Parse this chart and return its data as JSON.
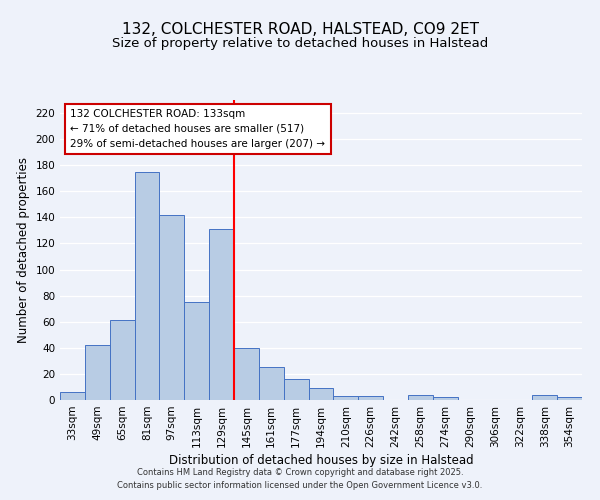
{
  "title": "132, COLCHESTER ROAD, HALSTEAD, CO9 2ET",
  "subtitle": "Size of property relative to detached houses in Halstead",
  "xlabel": "Distribution of detached houses by size in Halstead",
  "ylabel": "Number of detached properties",
  "bar_labels": [
    "33sqm",
    "49sqm",
    "65sqm",
    "81sqm",
    "97sqm",
    "113sqm",
    "129sqm",
    "145sqm",
    "161sqm",
    "177sqm",
    "194sqm",
    "210sqm",
    "226sqm",
    "242sqm",
    "258sqm",
    "274sqm",
    "290sqm",
    "306sqm",
    "322sqm",
    "338sqm",
    "354sqm"
  ],
  "bar_heights": [
    6,
    42,
    61,
    175,
    142,
    75,
    131,
    40,
    25,
    16,
    9,
    3,
    3,
    0,
    4,
    2,
    0,
    0,
    0,
    4,
    2
  ],
  "bar_color": "#b8cce4",
  "bar_edgecolor": "#4472c4",
  "vline_color": "#ff0000",
  "annotation_title": "132 COLCHESTER ROAD: 133sqm",
  "annotation_line1": "← 71% of detached houses are smaller (517)",
  "annotation_line2": "29% of semi-detached houses are larger (207) →",
  "annotation_box_color": "#ffffff",
  "annotation_box_edgecolor": "#cc0000",
  "footer1": "Contains HM Land Registry data © Crown copyright and database right 2025.",
  "footer2": "Contains public sector information licensed under the Open Government Licence v3.0.",
  "ylim": [
    0,
    230
  ],
  "yticks": [
    0,
    20,
    40,
    60,
    80,
    100,
    120,
    140,
    160,
    180,
    200,
    220
  ],
  "background_color": "#eef2fa",
  "grid_color": "#ffffff",
  "title_fontsize": 11,
  "subtitle_fontsize": 9.5,
  "axis_fontsize": 8.5,
  "tick_fontsize": 7.5,
  "annotation_fontsize": 7.5,
  "footer_fontsize": 6
}
